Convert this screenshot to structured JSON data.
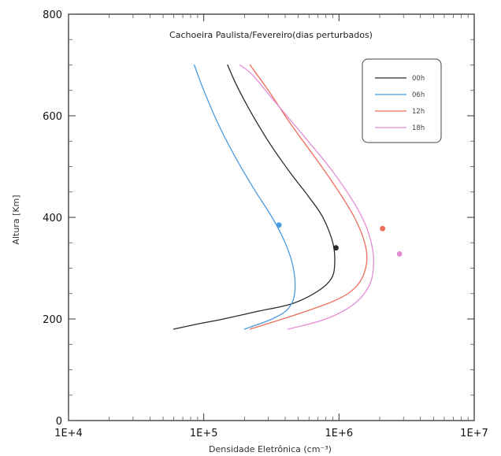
{
  "chart_data": {
    "type": "line",
    "title": "Cachoeira Paulista/Fevereiro(dias perturbados)",
    "xlabel": "Densidade Eletrônica (cm⁻³)",
    "ylabel": "Altura [Km]",
    "x_scale": "log",
    "xlim": [
      10000,
      10000000
    ],
    "ylim": [
      0,
      800
    ],
    "x_ticks": [
      {
        "value": 10000,
        "label": "1E+4"
      },
      {
        "value": 100000,
        "label": "1E+5"
      },
      {
        "value": 1000000,
        "label": "1E+6"
      },
      {
        "value": 10000000,
        "label": "1E+7"
      }
    ],
    "y_ticks": [
      {
        "value": 0,
        "label": "0"
      },
      {
        "value": 200,
        "label": "200"
      },
      {
        "value": 400,
        "label": "400"
      },
      {
        "value": 600,
        "label": "600"
      },
      {
        "value": 800,
        "label": "800"
      }
    ],
    "grid": false,
    "legend_position": "top-right",
    "series": [
      {
        "name": "00h",
        "color": "#2b2b2b",
        "points": [
          {
            "x": 60000,
            "y": 180
          },
          {
            "x": 90000,
            "y": 190
          },
          {
            "x": 140000,
            "y": 200
          },
          {
            "x": 250000,
            "y": 215
          },
          {
            "x": 450000,
            "y": 230
          },
          {
            "x": 700000,
            "y": 255
          },
          {
            "x": 880000,
            "y": 280
          },
          {
            "x": 930000,
            "y": 310
          },
          {
            "x": 900000,
            "y": 350
          },
          {
            "x": 760000,
            "y": 400
          },
          {
            "x": 600000,
            "y": 440
          },
          {
            "x": 430000,
            "y": 490
          },
          {
            "x": 300000,
            "y": 550
          },
          {
            "x": 220000,
            "y": 610
          },
          {
            "x": 175000,
            "y": 660
          },
          {
            "x": 150000,
            "y": 700
          }
        ],
        "peak": {
          "x": 950000,
          "y": 340
        }
      },
      {
        "name": "06h",
        "color": "#4a9be0",
        "points": [
          {
            "x": 200000,
            "y": 180
          },
          {
            "x": 320000,
            "y": 200
          },
          {
            "x": 420000,
            "y": 220
          },
          {
            "x": 470000,
            "y": 250
          },
          {
            "x": 460000,
            "y": 300
          },
          {
            "x": 400000,
            "y": 350
          },
          {
            "x": 320000,
            "y": 400
          },
          {
            "x": 230000,
            "y": 460
          },
          {
            "x": 170000,
            "y": 520
          },
          {
            "x": 130000,
            "y": 580
          },
          {
            "x": 100000,
            "y": 650
          },
          {
            "x": 85000,
            "y": 700
          }
        ],
        "peak": {
          "x": 360000,
          "y": 385
        }
      },
      {
        "name": "12h",
        "color": "#ef6d5a",
        "points": [
          {
            "x": 220000,
            "y": 180
          },
          {
            "x": 500000,
            "y": 210
          },
          {
            "x": 1000000,
            "y": 240
          },
          {
            "x": 1400000,
            "y": 270
          },
          {
            "x": 1600000,
            "y": 310
          },
          {
            "x": 1550000,
            "y": 350
          },
          {
            "x": 1300000,
            "y": 400
          },
          {
            "x": 1000000,
            "y": 450
          },
          {
            "x": 700000,
            "y": 510
          },
          {
            "x": 450000,
            "y": 580
          },
          {
            "x": 300000,
            "y": 650
          },
          {
            "x": 220000,
            "y": 700
          }
        ],
        "peak": {
          "x": 2100000,
          "y": 378
        }
      },
      {
        "name": "18h",
        "color": "#e48bd5",
        "points": [
          {
            "x": 420000,
            "y": 180
          },
          {
            "x": 800000,
            "y": 200
          },
          {
            "x": 1300000,
            "y": 230
          },
          {
            "x": 1700000,
            "y": 270
          },
          {
            "x": 1800000,
            "y": 320
          },
          {
            "x": 1650000,
            "y": 370
          },
          {
            "x": 1350000,
            "y": 420
          },
          {
            "x": 900000,
            "y": 490
          },
          {
            "x": 550000,
            "y": 560
          },
          {
            "x": 330000,
            "y": 630
          },
          {
            "x": 230000,
            "y": 680
          },
          {
            "x": 185000,
            "y": 700
          }
        ],
        "peak": {
          "x": 2800000,
          "y": 328
        }
      }
    ]
  }
}
